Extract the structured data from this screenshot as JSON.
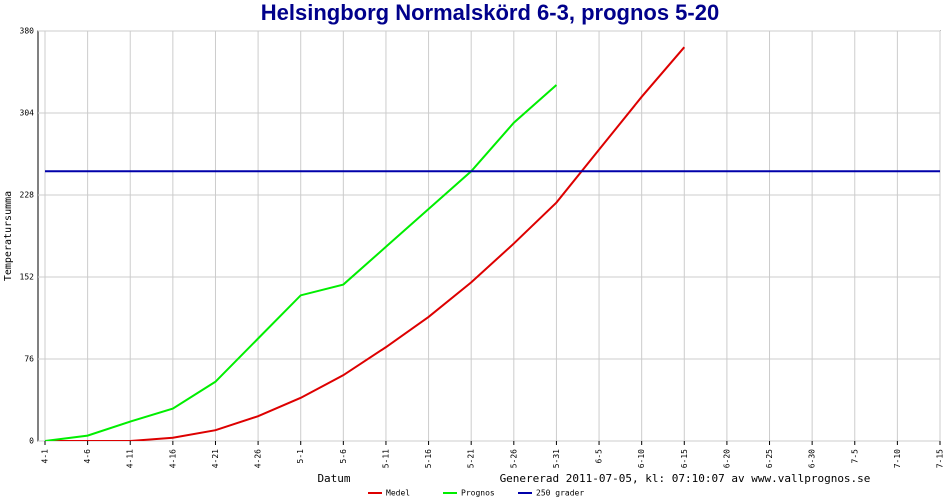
{
  "chart_data": {
    "type": "line",
    "title": "Helsingborg Normalskörd 6-3, prognos 5-20",
    "x_label": "Datum",
    "y_label": "Temperatursumma",
    "annotation": "Genererad 2011-07-05, kl: 07:10:07 av www.vallprognos.se",
    "categories": [
      "4-1",
      "4-6",
      "4-11",
      "4-16",
      "4-21",
      "4-26",
      "5-1",
      "5-6",
      "5-11",
      "5-16",
      "5-21",
      "5-26",
      "5-31",
      "6-5",
      "6-10",
      "6-15",
      "6-20",
      "6-25",
      "6-30",
      "7-5",
      "7-10",
      "7-15"
    ],
    "series": [
      {
        "name": "Medel",
        "color": "#dd0000",
        "values": [
          0,
          0,
          0,
          3,
          10,
          23,
          40,
          61,
          87,
          115,
          147,
          183,
          221,
          270,
          319,
          365,
          null,
          null,
          null,
          null,
          null,
          null
        ]
      },
      {
        "name": "Prognos",
        "color": "#00ee00",
        "values": [
          0,
          5,
          18,
          30,
          55,
          95,
          135,
          145,
          180,
          215,
          250,
          295,
          330,
          null,
          null,
          null,
          null,
          null,
          null,
          null,
          null,
          null
        ]
      },
      {
        "name": "250 grader",
        "color": "#0000aa",
        "values": [
          250,
          250,
          250,
          250,
          250,
          250,
          250,
          250,
          250,
          250,
          250,
          250,
          250,
          250,
          250,
          250,
          250,
          250,
          250,
          250,
          250,
          250
        ]
      }
    ],
    "ylim": [
      0,
      380
    ],
    "yticks": [
      0,
      76,
      152,
      228,
      304,
      380
    ],
    "grid": true
  }
}
